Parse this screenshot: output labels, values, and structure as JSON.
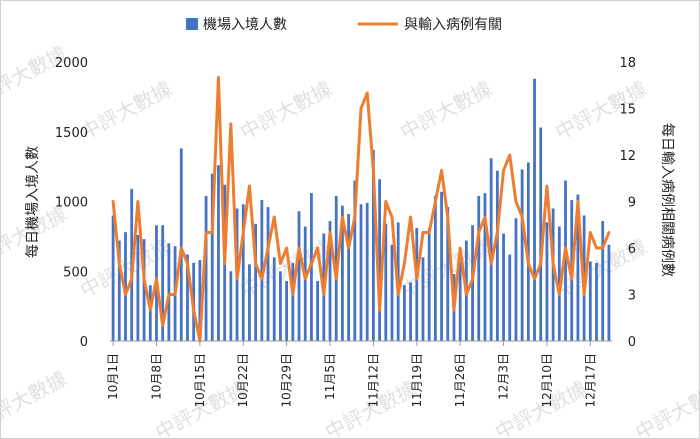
{
  "chart_data": {
    "type": "bar+line",
    "categories": [
      "10月1日",
      "10月2日",
      "10月3日",
      "10月4日",
      "10月5日",
      "10月6日",
      "10月7日",
      "10月8日",
      "10月9日",
      "10月10日",
      "10月11日",
      "10月12日",
      "10月13日",
      "10月14日",
      "10月15日",
      "10月16日",
      "10月17日",
      "10月18日",
      "10月19日",
      "10月20日",
      "10月21日",
      "10月22日",
      "10月23日",
      "10月24日",
      "10月25日",
      "10月26日",
      "10月27日",
      "10月28日",
      "10月29日",
      "10月30日",
      "10月31日",
      "11月1日",
      "11月2日",
      "11月3日",
      "11月4日",
      "11月5日",
      "11月6日",
      "11月7日",
      "11月8日",
      "11月9日",
      "11月10日",
      "11月11日",
      "11月12日",
      "11月13日",
      "11月14日",
      "11月15日",
      "11月16日",
      "11月17日",
      "11月18日",
      "11月19日",
      "11月20日",
      "11月21日",
      "11月22日",
      "11月23日",
      "11月24日",
      "11月25日",
      "11月26日",
      "11月27日",
      "11月28日",
      "11月29日",
      "11月30日",
      "12月1日",
      "12月2日",
      "12月3日",
      "12月4日",
      "12月5日",
      "12月6日",
      "12月7日",
      "12月8日",
      "12月9日",
      "12月10日",
      "12月11日",
      "12月12日",
      "12月13日",
      "12月14日",
      "12月15日",
      "12月16日",
      "12月17日",
      "12月18日",
      "12月19日",
      "12月20日"
    ],
    "x_tick_labels": [
      "10月1日",
      "10月8日",
      "10月15日",
      "10月22日",
      "10月29日",
      "11月5日",
      "11月12日",
      "11月19日",
      "11月26日",
      "12月3日",
      "12月10日",
      "12月17日"
    ],
    "x_tick_every": 7,
    "series": [
      {
        "name": "機場入境人數",
        "type": "bar",
        "axis": "left",
        "color": "#4472c4",
        "values": [
          900,
          720,
          780,
          1090,
          760,
          730,
          400,
          830,
          830,
          700,
          680,
          1380,
          620,
          560,
          580,
          1040,
          1200,
          1260,
          1120,
          500,
          950,
          980,
          550,
          840,
          1010,
          960,
          600,
          500,
          430,
          560,
          930,
          820,
          1060,
          430,
          770,
          860,
          1040,
          970,
          910,
          1150,
          980,
          990,
          1370,
          1160,
          840,
          690,
          850,
          400,
          420,
          810,
          600,
          810,
          1040,
          1070,
          960,
          480,
          600,
          720,
          830,
          1040,
          1060,
          1310,
          1220,
          770,
          620,
          880,
          1230,
          1280,
          1880,
          1530,
          850,
          950,
          820,
          1150,
          1010,
          1050,
          900,
          570,
          560,
          860,
          690
        ]
      },
      {
        "name": "與輸入病例有關",
        "type": "line",
        "axis": "right",
        "color": "#ed7d31",
        "values": [
          9,
          5,
          3,
          4,
          9,
          4,
          2,
          4,
          1,
          3,
          3,
          6,
          5,
          2,
          0,
          7,
          7,
          17,
          5,
          14,
          4,
          7,
          10,
          5,
          4,
          6,
          8,
          5,
          6,
          3,
          6,
          4,
          5,
          6,
          3,
          7,
          4,
          8,
          6,
          8,
          15,
          16,
          11,
          2,
          9,
          8,
          3,
          5,
          8,
          4,
          7,
          7,
          9,
          11,
          8,
          2,
          6,
          3,
          4,
          7,
          8,
          5,
          7,
          11,
          12,
          9,
          8,
          5,
          4,
          5,
          10,
          5,
          3,
          6,
          4,
          9,
          3,
          7,
          6,
          6,
          7
        ]
      }
    ],
    "y_left": {
      "label": "每日機場入境人數",
      "ticks": [
        "0",
        "500",
        "1000",
        "1500",
        "2000"
      ],
      "min": 0,
      "max": 2000
    },
    "y_right": {
      "label": "每日輸入病例相關病例數",
      "ticks": [
        "0",
        "3",
        "6",
        "9",
        "12",
        "15",
        "18"
      ],
      "min": 0,
      "max": 18
    },
    "legend": {
      "placement": "top-center",
      "items": [
        "機場入境人數",
        "與輸入病例有關"
      ]
    },
    "grid": false,
    "watermark": "中評大數據"
  }
}
